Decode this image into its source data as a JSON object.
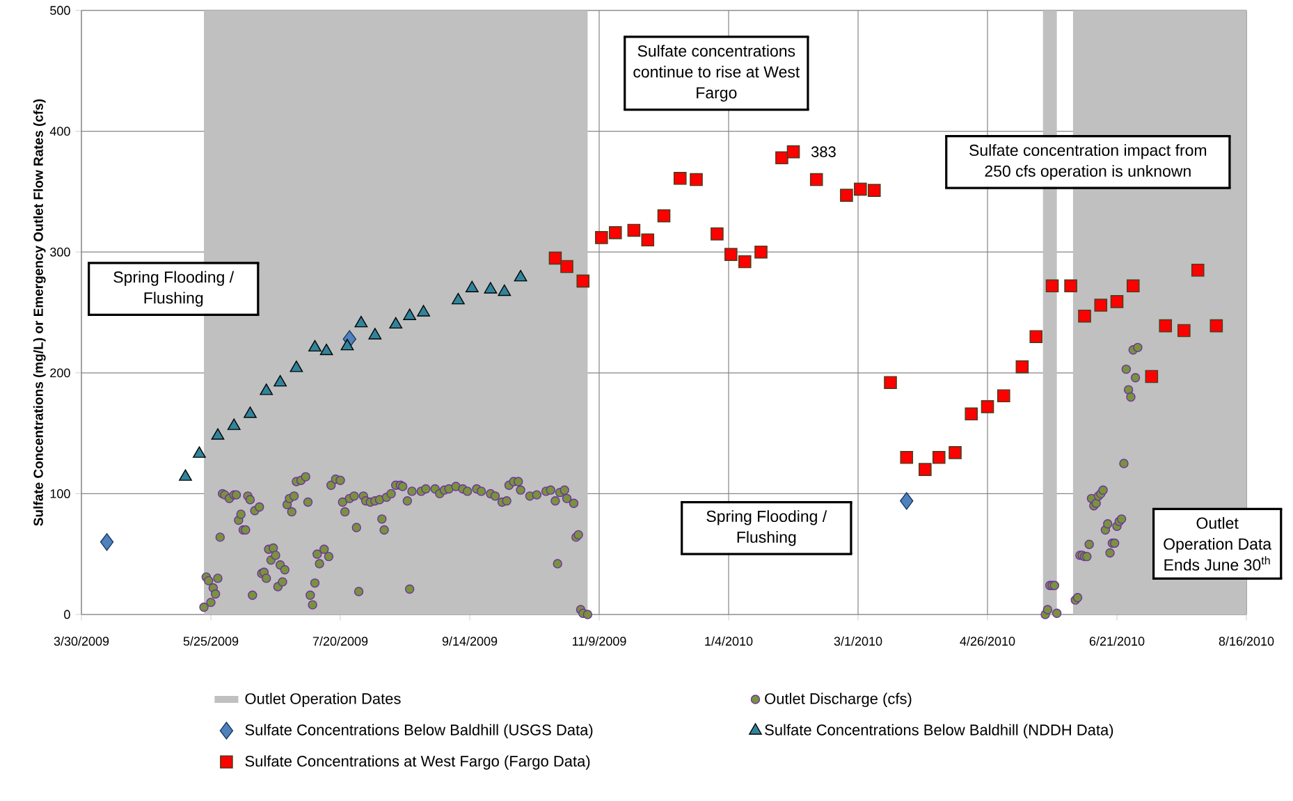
{
  "chart_data": {
    "type": "scatter",
    "ylabel": "Sulfate Concentrations (mg/L) or Emergency Outlet Flow Rates (cfs)",
    "xlim": [
      "2009-03-30",
      "2010-08-16"
    ],
    "xticks": [
      {
        "value": "2009-03-30",
        "label": "3/30/2009"
      },
      {
        "value": "2009-05-25",
        "label": "5/25/2009"
      },
      {
        "value": "2009-07-20",
        "label": "7/20/2009"
      },
      {
        "value": "2009-09-14",
        "label": "9/14/2009"
      },
      {
        "value": "2009-11-09",
        "label": "11/9/2009"
      },
      {
        "value": "2010-01-04",
        "label": "1/4/2010"
      },
      {
        "value": "2010-03-01",
        "label": "3/1/2010"
      },
      {
        "value": "2010-04-26",
        "label": "4/26/2010"
      },
      {
        "value": "2010-06-21",
        "label": "6/21/2010"
      },
      {
        "value": "2010-08-16",
        "label": "8/16/2010"
      }
    ],
    "ylim": [
      0,
      500
    ],
    "yticks": [
      0,
      100,
      200,
      300,
      400,
      500
    ],
    "grid": true,
    "legend": "bottom",
    "bands": [
      {
        "axis": "x",
        "from": "2009-05-22",
        "to": "2009-11-04",
        "label": "Outlet Operation Dates",
        "color": "#c0c0c0"
      },
      {
        "axis": "x",
        "from": "2010-05-20",
        "to": "2010-05-26",
        "color": "#c0c0c0"
      },
      {
        "axis": "x",
        "from": "2010-06-02",
        "to": "2010-08-16",
        "color": "#c0c0c0"
      }
    ],
    "series": [
      {
        "name": "Outlet Discharge (cfs)",
        "color": "#77933c",
        "marker": "circle",
        "x": [
          "2009-05-22",
          "2009-05-23",
          "2009-05-24",
          "2009-05-25",
          "2009-05-26",
          "2009-05-27",
          "2009-05-28",
          "2009-05-29",
          "2009-05-30",
          "2009-05-31",
          "2009-06-02",
          "2009-06-04",
          "2009-06-05",
          "2009-06-06",
          "2009-06-07",
          "2009-06-08",
          "2009-06-09",
          "2009-06-10",
          "2009-06-11",
          "2009-06-12",
          "2009-06-13",
          "2009-06-15",
          "2009-06-16",
          "2009-06-17",
          "2009-06-18",
          "2009-06-19",
          "2009-06-20",
          "2009-06-21",
          "2009-06-22",
          "2009-06-23",
          "2009-06-24",
          "2009-06-25",
          "2009-06-26",
          "2009-06-27",
          "2009-06-28",
          "2009-06-29",
          "2009-06-30",
          "2009-07-01",
          "2009-07-03",
          "2009-07-05",
          "2009-07-06",
          "2009-07-07",
          "2009-07-08",
          "2009-07-09",
          "2009-07-10",
          "2009-07-11",
          "2009-07-13",
          "2009-07-15",
          "2009-07-16",
          "2009-07-18",
          "2009-07-20",
          "2009-07-21",
          "2009-07-22",
          "2009-07-24",
          "2009-07-26",
          "2009-07-27",
          "2009-07-28",
          "2009-07-30",
          "2009-07-31",
          "2009-08-02",
          "2009-08-04",
          "2009-08-06",
          "2009-08-07",
          "2009-08-08",
          "2009-08-09",
          "2009-08-11",
          "2009-08-13",
          "2009-08-15",
          "2009-08-16",
          "2009-08-18",
          "2009-08-19",
          "2009-08-20",
          "2009-08-24",
          "2009-08-26",
          "2009-08-30",
          "2009-09-01",
          "2009-09-03",
          "2009-09-05",
          "2009-09-08",
          "2009-09-11",
          "2009-09-13",
          "2009-09-17",
          "2009-09-19",
          "2009-09-23",
          "2009-09-25",
          "2009-09-28",
          "2009-09-30",
          "2009-10-01",
          "2009-10-03",
          "2009-10-05",
          "2009-10-06",
          "2009-10-10",
          "2009-10-13",
          "2009-10-17",
          "2009-10-19",
          "2009-10-21",
          "2009-10-22",
          "2009-10-23",
          "2009-10-25",
          "2009-10-26",
          "2009-10-29",
          "2009-10-30",
          "2009-10-31",
          "2009-11-01",
          "2009-11-02",
          "2009-11-04",
          "2010-05-21",
          "2010-05-22",
          "2010-05-23",
          "2010-05-24",
          "2010-05-25",
          "2010-05-26",
          "2010-06-03",
          "2010-06-04",
          "2010-06-05",
          "2010-06-06",
          "2010-06-07",
          "2010-06-08",
          "2010-06-09",
          "2010-06-10",
          "2010-06-11",
          "2010-06-12",
          "2010-06-13",
          "2010-06-14",
          "2010-06-15",
          "2010-06-16",
          "2010-06-17",
          "2010-06-18",
          "2010-06-19",
          "2010-06-20",
          "2010-06-21",
          "2010-06-22",
          "2010-06-23",
          "2010-06-24",
          "2010-06-25",
          "2010-06-26",
          "2010-06-27",
          "2010-06-28",
          "2010-06-29",
          "2010-06-30"
        ],
        "values": [
          6,
          31,
          28,
          10,
          22,
          17,
          30,
          64,
          100,
          99,
          96,
          99,
          99,
          78,
          83,
          70,
          70,
          98,
          95,
          16,
          86,
          89,
          34,
          35,
          30,
          54,
          45,
          55,
          49,
          23,
          41,
          27,
          37,
          91,
          96,
          85,
          98,
          110,
          111,
          114,
          93,
          16,
          8,
          26,
          50,
          42,
          54,
          48,
          107,
          112,
          111,
          93,
          85,
          96,
          98,
          72,
          19,
          98,
          94,
          93,
          94,
          95,
          79,
          70,
          97,
          100,
          107,
          107,
          106,
          94,
          21,
          102,
          102,
          104,
          104,
          100,
          103,
          104,
          106,
          104,
          102,
          104,
          102,
          100,
          98,
          93,
          94,
          107,
          110,
          110,
          103,
          98,
          99,
          102,
          103,
          94,
          42,
          101,
          103,
          96,
          92,
          64,
          66,
          4,
          1,
          0,
          0,
          4,
          24,
          24,
          24,
          1,
          12,
          14,
          49,
          49,
          48,
          48,
          58,
          96,
          90,
          92,
          98,
          100,
          103,
          70,
          75,
          51,
          59,
          59,
          73,
          77,
          79,
          125,
          203,
          186,
          180,
          219,
          196,
          221
        ]
      },
      {
        "name": "Sulfate Concentrations Below Baldhill (USGS Data)",
        "color": "#4f81bd",
        "marker": "diamond",
        "x": [
          "2009-04-10",
          "2009-07-24",
          "2010-03-22"
        ],
        "values": [
          60,
          228,
          94
        ]
      },
      {
        "name": "Sulfate Concentrations Below Baldhill (NDDH Data)",
        "color": "#31849b",
        "marker": "triangle",
        "x": [
          "2009-05-14",
          "2009-05-20",
          "2009-05-28",
          "2009-06-04",
          "2009-06-11",
          "2009-06-18",
          "2009-06-24",
          "2009-07-01",
          "2009-07-09",
          "2009-07-14",
          "2009-07-23",
          "2009-07-29",
          "2009-08-04",
          "2009-08-13",
          "2009-08-19",
          "2009-08-25",
          "2009-09-09",
          "2009-09-15",
          "2009-09-23",
          "2009-09-29",
          "2009-10-06"
        ],
        "values": [
          114,
          133,
          148,
          156,
          166,
          185,
          192,
          204,
          221,
          218,
          222,
          241,
          231,
          240,
          247,
          250,
          260,
          270,
          269,
          267,
          279
        ]
      },
      {
        "name": "Sulfate Concentrations at West Fargo (Fargo Data)",
        "color": "#ff0000",
        "marker": "square",
        "x": [
          "2009-10-21",
          "2009-10-26",
          "2009-11-02",
          "2009-11-10",
          "2009-11-16",
          "2009-11-24",
          "2009-11-30",
          "2009-12-07",
          "2009-12-14",
          "2009-12-21",
          "2009-12-30",
          "2010-01-05",
          "2010-01-11",
          "2010-01-18",
          "2010-01-27",
          "2010-02-01",
          "2010-02-11",
          "2010-02-24",
          "2010-03-02",
          "2010-03-08",
          "2010-03-15",
          "2010-03-22",
          "2010-03-30",
          "2010-04-05",
          "2010-04-12",
          "2010-04-19",
          "2010-04-26",
          "2010-05-03",
          "2010-05-11",
          "2010-05-17",
          "2010-05-24",
          "2010-06-01",
          "2010-06-07",
          "2010-06-14",
          "2010-06-21",
          "2010-06-28",
          "2010-07-06",
          "2010-07-12",
          "2010-07-20",
          "2010-07-26",
          "2010-08-03"
        ],
        "values": [
          295,
          288,
          276,
          312,
          316,
          318,
          310,
          330,
          361,
          360,
          315,
          298,
          292,
          300,
          378,
          383,
          360,
          347,
          352,
          351,
          192,
          130,
          120,
          130,
          134,
          166,
          172,
          181,
          205,
          230,
          272,
          272,
          247,
          256,
          259,
          272,
          197,
          239,
          235,
          285,
          239
        ]
      }
    ],
    "annotations": [
      "Spring Flooding / Flushing",
      "Sulfate concentrations continue to rise at West Fargo",
      "Spring Flooding / Flushing",
      "Sulfate concentration impact from 250 cfs operation is unknown",
      "Outlet Operation Data Ends June 30$^{th}$",
      {
        "text": "383",
        "x": "2010-02-01",
        "y": 383
      }
    ]
  }
}
